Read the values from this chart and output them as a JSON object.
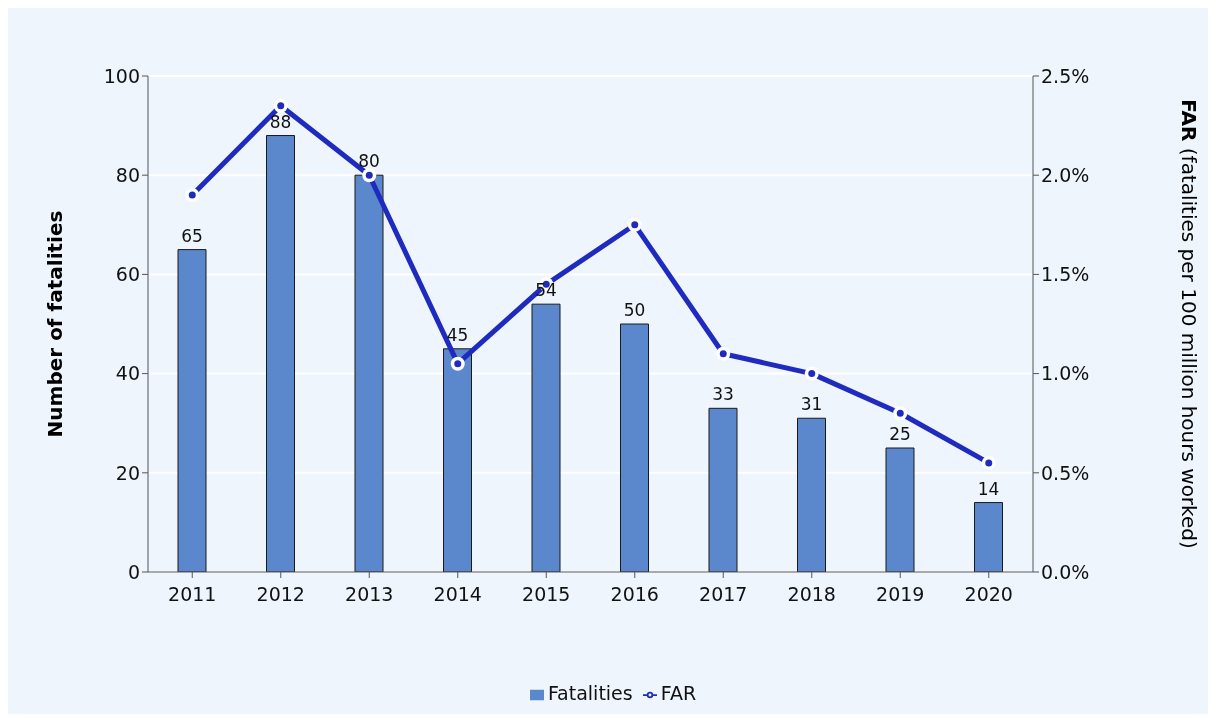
{
  "chart_data": {
    "type": "bar",
    "categories": [
      "2011",
      "2012",
      "2013",
      "2014",
      "2015",
      "2016",
      "2017",
      "2018",
      "2019",
      "2020"
    ],
    "series": [
      {
        "name": "Fatalities",
        "color": "#5b87cc",
        "values": [
          65,
          88,
          80,
          45,
          54,
          50,
          33,
          31,
          25,
          14
        ],
        "value_labels": [
          "65",
          "88",
          "80",
          "45",
          "54",
          "50",
          "33",
          "31",
          "25",
          "14"
        ]
      },
      {
        "name": "FAR",
        "type": "line",
        "axis": "y2",
        "color": "#1f2bbf",
        "values": [
          1.9,
          2.35,
          2.0,
          1.05,
          1.45,
          1.75,
          1.1,
          1.0,
          0.8,
          0.55
        ]
      }
    ],
    "ylabel": "Number of fatalities",
    "y2label": "FAR (fatalities per 100 million hours worked)",
    "ylim": [
      0,
      100
    ],
    "yticks": [
      0,
      20,
      40,
      60,
      80,
      100
    ],
    "y2lim": [
      0,
      2.5
    ],
    "y2ticks": [
      {
        "value": 0,
        "label": "0.0%"
      },
      {
        "value": 0.5,
        "label": "0.5%"
      },
      {
        "value": 1,
        "label": "1.0%"
      },
      {
        "value": 1.5,
        "label": "1.5%"
      },
      {
        "value": 2,
        "label": "2.0%"
      },
      {
        "value": 2.5,
        "label": "2.5%"
      }
    ],
    "grid": "y",
    "legend": "bottom",
    "marker": "circle",
    "line_style": "solid"
  }
}
